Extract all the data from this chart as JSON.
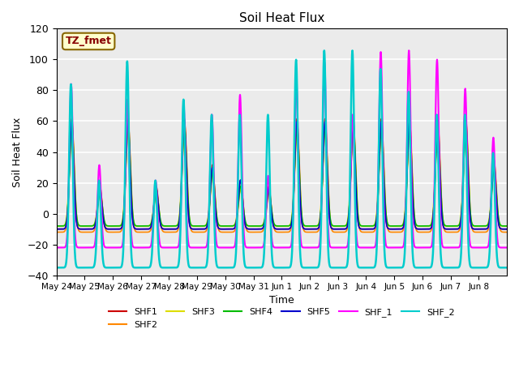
{
  "title": "Soil Heat Flux",
  "ylabel": "Soil Heat Flux",
  "xlabel": "Time",
  "ylim": [
    -40,
    120
  ],
  "yticks": [
    -40,
    -20,
    0,
    20,
    40,
    60,
    80,
    100,
    120
  ],
  "series": {
    "SHF1": {
      "color": "#cc0000",
      "lw": 1.2
    },
    "SHF2": {
      "color": "#ff8800",
      "lw": 1.2
    },
    "SHF3": {
      "color": "#dddd00",
      "lw": 1.2
    },
    "SHF4": {
      "color": "#00bb00",
      "lw": 1.2
    },
    "SHF5": {
      "color": "#0000cc",
      "lw": 1.2
    },
    "SHF_1": {
      "color": "#ff00ff",
      "lw": 1.5
    },
    "SHF_2": {
      "color": "#00cccc",
      "lw": 1.8
    }
  },
  "annotation_text": "TZ_fmet",
  "annotation_color": "#880000",
  "annotation_bg": "#ffffcc",
  "annotation_border": "#886600",
  "background_color": "#ebebeb",
  "grid_color": "white",
  "num_days": 16,
  "hours_per_day": 24,
  "dt_hours": 0.1
}
